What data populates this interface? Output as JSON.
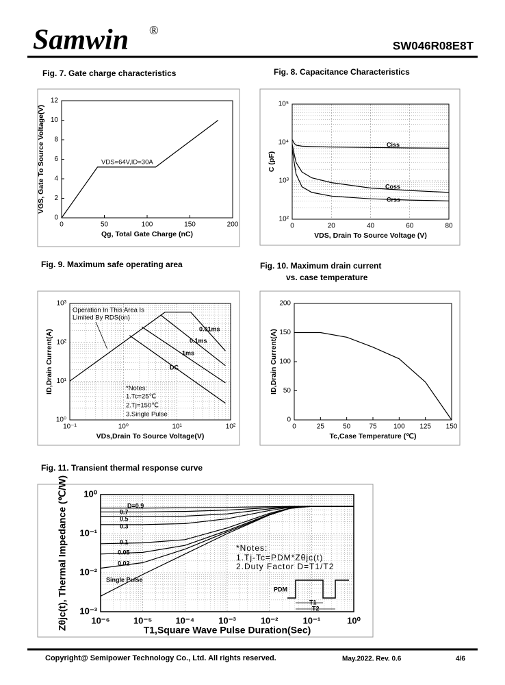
{
  "header": {
    "brand": "Samwin",
    "mark": "®",
    "part": "SW046R08E8T"
  },
  "chart_data": [
    {
      "type": "line",
      "title": "Fig. 7. Gate charge characteristics",
      "xlabel": "Qg, Total Gate Charge (nC)",
      "ylabel": "VGS, Gate To Source Voltage(V)",
      "x": [
        0,
        42,
        110,
        183
      ],
      "values": [
        0,
        5.2,
        5.2,
        10
      ],
      "color": "#000000",
      "xlim": [
        0,
        200
      ],
      "xticks": [
        0,
        50,
        100,
        150,
        200
      ],
      "ylim": [
        0,
        12
      ],
      "yticks": [
        0,
        2,
        4,
        6,
        8,
        10,
        12
      ],
      "annotations": [
        "VDS=64V,ID=30A"
      ]
    },
    {
      "type": "line",
      "title": "Fig. 8. Capacitance Characteristics",
      "xlabel": "VDS, Drain To Source Voltage (V)",
      "ylabel": "C (pF)",
      "ylog": true,
      "grid": true,
      "xlim": [
        0,
        80
      ],
      "xticks": [
        0,
        20,
        40,
        60,
        80
      ],
      "ylim": [
        100,
        100000
      ],
      "yticks": [
        {
          "value": 100,
          "label": "10²"
        },
        {
          "value": 1000,
          "label": "10³"
        },
        {
          "value": 10000,
          "label": "10⁴"
        },
        {
          "value": 100000,
          "label": "10⁵"
        }
      ],
      "series": [
        {
          "name": "Ciss",
          "color": "#000000",
          "x": [
            0,
            1,
            2,
            5,
            10,
            20,
            40,
            60,
            80
          ],
          "values": [
            12000,
            9500,
            8500,
            8000,
            7800,
            7600,
            7400,
            7200,
            7100
          ]
        },
        {
          "name": "Coss",
          "color": "#000000",
          "x": [
            0,
            1,
            2,
            5,
            10,
            20,
            40,
            60,
            80
          ],
          "values": [
            9000,
            5000,
            3000,
            1700,
            1200,
            900,
            650,
            560,
            500
          ]
        },
        {
          "name": "Crss",
          "color": "#000000",
          "x": [
            0,
            1,
            2,
            5,
            10,
            20,
            40,
            60,
            80
          ],
          "values": [
            7000,
            3000,
            1500,
            700,
            500,
            400,
            340,
            315,
            300
          ]
        }
      ]
    },
    {
      "type": "line",
      "title": "Fig. 9. Maximum safe operating area",
      "xlabel": "VDs,Drain To Source Voltage(V)",
      "ylabel": "ID,Drain Current(A)",
      "xlog": true,
      "ylog": true,
      "grid": true,
      "xlim": [
        0.1,
        100
      ],
      "ylim": [
        1,
        1000
      ],
      "xticks": [
        {
          "value": 0.1,
          "label": "10⁻¹"
        },
        {
          "value": 1,
          "label": "10⁰"
        },
        {
          "value": 10,
          "label": "10¹"
        },
        {
          "value": 100,
          "label": "10²"
        }
      ],
      "yticks": [
        {
          "value": 1,
          "label": "10⁰"
        },
        {
          "value": 10,
          "label": "10¹"
        },
        {
          "value": 100,
          "label": "10²"
        },
        {
          "value": 1000,
          "label": "10³"
        }
      ],
      "series": [
        {
          "color": "#000000",
          "x": [
            0.1,
            6
          ],
          "values": [
            10,
            600
          ]
        },
        {
          "name": "0.01ms",
          "color": "#000000",
          "x": [
            6,
            18,
            80
          ],
          "values": [
            600,
            600,
            60
          ]
        },
        {
          "name": "0.1ms",
          "color": "#000000",
          "x": [
            5,
            80
          ],
          "values": [
            500,
            25
          ]
        },
        {
          "name": "1ms",
          "color": "#000000",
          "x": [
            2.2,
            80
          ],
          "values": [
            250,
            9
          ]
        },
        {
          "name": "DC",
          "color": "#000000",
          "x": [
            1.3,
            80
          ],
          "values": [
            150,
            2.7
          ]
        }
      ],
      "annotations": [
        "Operation In This Area Is",
        "Limited By RDS(on)",
        "*Notes:",
        "1.Tc=25℃",
        "2.Tj=150℃",
        "3.Single Pulse"
      ]
    },
    {
      "type": "line",
      "title": "Fig. 10. Maximum drain current",
      "subtitle": "vs. case temperature",
      "xlabel": "Tc,Case Temperature (℃)",
      "ylabel": "ID,Drain Current(A)",
      "x": [
        0,
        25,
        50,
        75,
        100,
        125,
        150
      ],
      "values": [
        150,
        150,
        142,
        125,
        105,
        65,
        0
      ],
      "color": "#000000",
      "xlim": [
        0,
        150
      ],
      "xticks": [
        0,
        25,
        50,
        75,
        100,
        125,
        150
      ],
      "ylim": [
        0,
        200
      ],
      "yticks": [
        0,
        50,
        100,
        150,
        200
      ]
    },
    {
      "type": "line",
      "title": "Fig. 11. Transient thermal response curve",
      "xlabel": "T1,Square Wave Pulse Duration(Sec)",
      "ylabel": "Zθjc(t), Thermal Impedance (℃/W)",
      "xlog": true,
      "ylog": true,
      "grid": true,
      "xlim": [
        1e-06,
        1
      ],
      "ylim": [
        0.001,
        1
      ],
      "xticks": [
        {
          "value": 1e-06,
          "label": "10⁻⁶"
        },
        {
          "value": 1e-05,
          "label": "10⁻⁵"
        },
        {
          "value": 0.0001,
          "label": "10⁻⁴"
        },
        {
          "value": 0.001,
          "label": "10⁻³"
        },
        {
          "value": 0.01,
          "label": "10⁻²"
        },
        {
          "value": 0.1,
          "label": "10⁻¹"
        },
        {
          "value": 1,
          "label": "10⁰"
        }
      ],
      "yticks": [
        {
          "value": 0.001,
          "label": "10⁻³"
        },
        {
          "value": 0.01,
          "label": "10⁻²"
        },
        {
          "value": 0.1,
          "label": "10⁻¹"
        },
        {
          "value": 1,
          "label": "10⁰"
        }
      ],
      "series": [
        {
          "name": "D=0.9",
          "color": "#000000",
          "x": [
            1e-06,
            1e-05,
            0.0001,
            0.001,
            0.01,
            0.03,
            0.1,
            1
          ],
          "values": [
            0.45,
            0.45,
            0.46,
            0.47,
            0.49,
            0.5,
            0.5,
            0.5
          ]
        },
        {
          "name": "0.7",
          "color": "#000000",
          "x": [
            1e-06,
            1e-05,
            0.0001,
            0.001,
            0.01,
            0.03,
            0.1,
            1
          ],
          "values": [
            0.36,
            0.36,
            0.37,
            0.4,
            0.46,
            0.49,
            0.5,
            0.5
          ]
        },
        {
          "name": "0.5",
          "color": "#000000",
          "x": [
            1e-06,
            1e-05,
            0.0001,
            0.001,
            0.01,
            0.03,
            0.1,
            1
          ],
          "values": [
            0.27,
            0.27,
            0.28,
            0.32,
            0.43,
            0.48,
            0.5,
            0.5
          ]
        },
        {
          "name": "0.3",
          "color": "#000000",
          "x": [
            1e-06,
            1e-05,
            0.0001,
            0.001,
            0.01,
            0.03,
            0.1,
            1
          ],
          "values": [
            0.17,
            0.17,
            0.18,
            0.24,
            0.39,
            0.47,
            0.5,
            0.5
          ]
        },
        {
          "name": "0.1",
          "color": "#000000",
          "x": [
            1e-06,
            1e-05,
            0.0001,
            0.001,
            0.01,
            0.03,
            0.1,
            1
          ],
          "values": [
            0.055,
            0.058,
            0.07,
            0.14,
            0.33,
            0.45,
            0.5,
            0.5
          ]
        },
        {
          "name": "0.05",
          "color": "#000000",
          "x": [
            1e-06,
            1e-05,
            0.0001,
            0.001,
            0.01,
            0.03,
            0.1,
            1
          ],
          "values": [
            0.03,
            0.033,
            0.05,
            0.12,
            0.31,
            0.45,
            0.5,
            0.5
          ]
        },
        {
          "name": "0.02",
          "color": "#000000",
          "x": [
            1e-06,
            1e-05,
            0.0001,
            0.001,
            0.01,
            0.03,
            0.1,
            1
          ],
          "values": [
            0.013,
            0.018,
            0.04,
            0.11,
            0.3,
            0.44,
            0.5,
            0.5
          ]
        },
        {
          "name": "Single Pulse",
          "color": "#000000",
          "x": [
            1e-06,
            1e-05,
            0.0001,
            0.001,
            0.01,
            0.03,
            0.1,
            1
          ],
          "values": [
            0.0025,
            0.009,
            0.03,
            0.1,
            0.3,
            0.44,
            0.5,
            0.5
          ]
        }
      ],
      "annotations": [
        "*Notes:",
        "1.Tj-Tc=PDM*Zθjc(t)",
        "2.Duty Factor D=T1/T2",
        "PDM",
        "T1",
        "T2"
      ]
    }
  ],
  "footer": {
    "copyright": "Copyright@ Semipower Technology Co., Ltd. All rights reserved.",
    "revision": "May.2022. Rev. 0.6",
    "page": "4/6"
  }
}
